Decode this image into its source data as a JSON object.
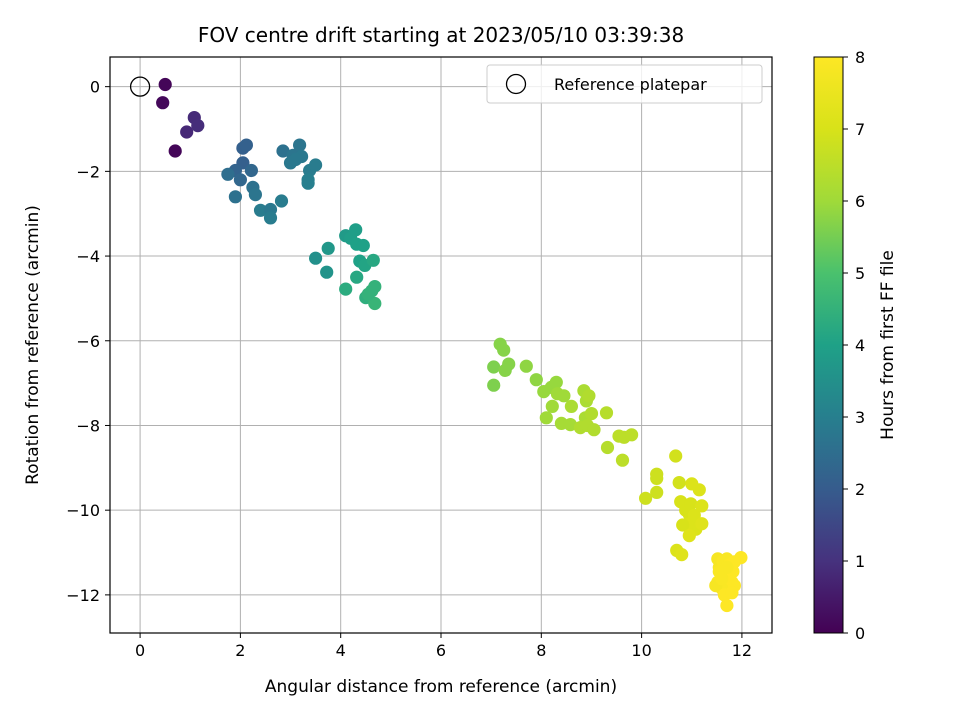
{
  "chart_data": {
    "type": "scatter",
    "title": "FOV centre drift starting at 2023/05/10 03:39:38",
    "xlabel": "Angular distance from reference (arcmin)",
    "ylabel": "Rotation from reference (arcmin)",
    "xlim": [
      -0.6,
      12.6
    ],
    "ylim": [
      -12.9,
      0.7
    ],
    "x_ticks": [
      0,
      2,
      4,
      6,
      8,
      10,
      12
    ],
    "y_ticks": [
      0,
      -2,
      -4,
      -6,
      -8,
      -10,
      -12
    ],
    "x_tick_labels": [
      "0",
      "2",
      "4",
      "6",
      "8",
      "10",
      "12"
    ],
    "y_tick_labels": [
      "0",
      "−2",
      "−4",
      "−6",
      "−8",
      "−10",
      "−12"
    ],
    "grid": true,
    "legend": {
      "placement": "top-right",
      "entries": [
        {
          "label": "Reference platepar",
          "marker": "open-circle",
          "x": 0,
          "y": 0
        }
      ]
    },
    "colorbar": {
      "label": "Hours from first FF file",
      "colormap": "viridis",
      "range": [
        0,
        8
      ],
      "ticks": [
        0,
        1,
        2,
        3,
        4,
        5,
        6,
        7,
        8
      ],
      "tick_labels": [
        "0",
        "1",
        "2",
        "3",
        "4",
        "5",
        "6",
        "7",
        "8"
      ]
    },
    "points": [
      [
        0.5,
        0.05,
        0.1
      ],
      [
        0.45,
        -0.38,
        0.15
      ],
      [
        0.7,
        -1.52,
        0.1
      ],
      [
        0.93,
        -1.07,
        0.8
      ],
      [
        1.08,
        -0.73,
        0.85
      ],
      [
        1.15,
        -0.92,
        0.9
      ],
      [
        2.05,
        -1.45,
        2.1
      ],
      [
        2.12,
        -1.38,
        2.15
      ],
      [
        2.05,
        -1.8,
        2.1
      ],
      [
        1.9,
        -1.98,
        2.2
      ],
      [
        2.22,
        -1.98,
        2.3
      ],
      [
        1.75,
        -2.07,
        2.5
      ],
      [
        2.0,
        -2.2,
        2.3
      ],
      [
        2.25,
        -2.38,
        2.6
      ],
      [
        2.3,
        -2.55,
        2.7
      ],
      [
        1.9,
        -2.6,
        2.6
      ],
      [
        2.4,
        -2.92,
        2.9
      ],
      [
        2.6,
        -2.9,
        2.8
      ],
      [
        2.6,
        -3.1,
        2.9
      ],
      [
        2.82,
        -2.7,
        2.9
      ],
      [
        2.85,
        -1.52,
        2.6
      ],
      [
        3.05,
        -1.62,
        2.7
      ],
      [
        3.18,
        -1.38,
        2.7
      ],
      [
        3.22,
        -1.65,
        2.8
      ],
      [
        3.0,
        -1.8,
        2.8
      ],
      [
        3.1,
        -1.72,
        2.8
      ],
      [
        3.38,
        -1.98,
        2.9
      ],
      [
        3.5,
        -1.85,
        2.9
      ],
      [
        3.35,
        -2.2,
        3.0
      ],
      [
        3.35,
        -2.28,
        3.0
      ],
      [
        3.5,
        -4.05,
        3.5
      ],
      [
        3.72,
        -4.38,
        3.6
      ],
      [
        3.75,
        -3.82,
        3.7
      ],
      [
        4.1,
        -3.52,
        3.8
      ],
      [
        4.2,
        -3.58,
        3.9
      ],
      [
        4.3,
        -3.38,
        3.9
      ],
      [
        4.32,
        -3.72,
        4.0
      ],
      [
        4.45,
        -3.75,
        4.0
      ],
      [
        4.38,
        -4.12,
        4.0
      ],
      [
        4.48,
        -4.22,
        4.1
      ],
      [
        4.65,
        -4.1,
        4.2
      ],
      [
        4.32,
        -4.5,
        4.2
      ],
      [
        4.1,
        -4.78,
        4.3
      ],
      [
        4.5,
        -4.98,
        4.4
      ],
      [
        4.62,
        -4.82,
        4.5
      ],
      [
        4.68,
        -4.72,
        4.5
      ],
      [
        4.68,
        -5.12,
        4.6
      ],
      [
        4.55,
        -4.9,
        4.5
      ],
      [
        7.18,
        -6.08,
        5.7
      ],
      [
        7.25,
        -6.22,
        5.7
      ],
      [
        7.05,
        -6.62,
        5.6
      ],
      [
        7.35,
        -6.55,
        5.7
      ],
      [
        7.28,
        -6.7,
        5.7
      ],
      [
        7.05,
        -7.05,
        5.6
      ],
      [
        7.7,
        -6.6,
        5.8
      ],
      [
        7.9,
        -6.92,
        5.8
      ],
      [
        8.05,
        -7.2,
        5.9
      ],
      [
        8.2,
        -7.1,
        5.9
      ],
      [
        8.3,
        -6.98,
        5.9
      ],
      [
        8.32,
        -7.25,
        6.0
      ],
      [
        8.22,
        -7.55,
        6.0
      ],
      [
        8.45,
        -7.3,
        6.0
      ],
      [
        8.1,
        -7.82,
        6.0
      ],
      [
        8.4,
        -7.95,
        6.1
      ],
      [
        8.58,
        -7.98,
        6.1
      ],
      [
        8.6,
        -7.55,
        6.2
      ],
      [
        8.85,
        -7.18,
        6.2
      ],
      [
        8.9,
        -7.42,
        6.2
      ],
      [
        8.95,
        -7.3,
        6.3
      ],
      [
        8.88,
        -7.82,
        6.2
      ],
      [
        8.78,
        -8.05,
        6.3
      ],
      [
        8.92,
        -8.0,
        6.3
      ],
      [
        9.05,
        -8.1,
        6.3
      ],
      [
        9.0,
        -7.72,
        6.3
      ],
      [
        9.3,
        -7.7,
        6.4
      ],
      [
        9.32,
        -8.52,
        6.4
      ],
      [
        9.55,
        -8.25,
        6.5
      ],
      [
        9.65,
        -8.28,
        6.5
      ],
      [
        9.62,
        -8.82,
        6.5
      ],
      [
        9.8,
        -8.22,
        6.5
      ],
      [
        10.08,
        -9.72,
        6.8
      ],
      [
        10.3,
        -9.58,
        6.8
      ],
      [
        10.3,
        -9.15,
        6.8
      ],
      [
        10.3,
        -9.25,
        6.8
      ],
      [
        10.68,
        -8.72,
        6.9
      ],
      [
        10.75,
        -9.35,
        6.9
      ],
      [
        10.78,
        -9.8,
        7.0
      ],
      [
        10.88,
        -10.0,
        7.0
      ],
      [
        10.95,
        -10.1,
        7.0
      ],
      [
        10.98,
        -9.85,
        7.0
      ],
      [
        11.0,
        -10.3,
        7.1
      ],
      [
        11.05,
        -10.12,
        7.1
      ],
      [
        11.08,
        -10.45,
        7.1
      ],
      [
        10.9,
        -10.35,
        7.1
      ],
      [
        11.15,
        -9.52,
        7.1
      ],
      [
        11.2,
        -9.9,
        7.1
      ],
      [
        11.2,
        -10.32,
        7.2
      ],
      [
        10.82,
        -10.35,
        7.0
      ],
      [
        10.7,
        -10.95,
        7.1
      ],
      [
        10.8,
        -11.05,
        7.2
      ],
      [
        10.95,
        -10.6,
        7.2
      ],
      [
        11.0,
        -9.38,
        7.1
      ],
      [
        11.52,
        -11.15,
        7.8
      ],
      [
        11.55,
        -11.35,
        7.8
      ],
      [
        11.6,
        -11.5,
        7.9
      ],
      [
        11.62,
        -11.2,
        7.9
      ],
      [
        11.7,
        -11.15,
        7.9
      ],
      [
        11.65,
        -11.42,
        7.9
      ],
      [
        11.72,
        -11.6,
        7.9
      ],
      [
        11.75,
        -11.3,
        8.0
      ],
      [
        11.82,
        -11.45,
        8.0
      ],
      [
        11.68,
        -11.78,
        8.0
      ],
      [
        11.8,
        -11.7,
        8.0
      ],
      [
        11.85,
        -11.78,
        8.0
      ],
      [
        11.75,
        -11.9,
        8.0
      ],
      [
        11.6,
        -11.85,
        7.9
      ],
      [
        11.52,
        -11.7,
        7.9
      ],
      [
        11.48,
        -11.78,
        7.8
      ],
      [
        11.65,
        -12.0,
        8.0
      ],
      [
        11.8,
        -11.95,
        8.0
      ],
      [
        11.7,
        -12.25,
        8.0
      ],
      [
        11.98,
        -11.12,
        8.0
      ],
      [
        11.85,
        -11.22,
        8.0
      ],
      [
        11.55,
        -11.45,
        7.9
      ],
      [
        11.6,
        -11.62,
        7.9
      ],
      [
        11.7,
        -11.35,
        7.9
      ]
    ]
  }
}
